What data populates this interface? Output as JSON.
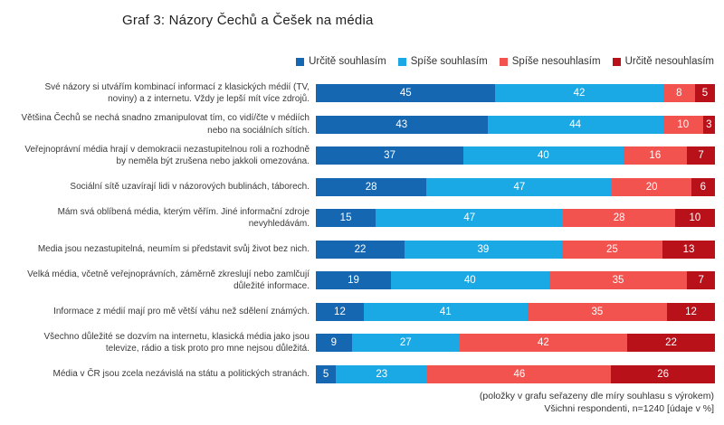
{
  "title": "Graf 3: Názory Čechů a Češek na média",
  "legend": {
    "items": [
      {
        "label": "Určitě souhlasím",
        "color": "#1567b2"
      },
      {
        "label": "Spíše souhlasím",
        "color": "#1ba9e6"
      },
      {
        "label": "Spíše nesouhlasím",
        "color": "#f3534f"
      },
      {
        "label": "Určitě nesouhlasím",
        "color": "#b9111a"
      }
    ]
  },
  "chart_data": {
    "type": "bar",
    "orientation": "horizontal",
    "stacked": true,
    "units": "%",
    "xlim": [
      0,
      100
    ],
    "grid": false,
    "legend_position": "top-right",
    "value_labels": "inside, white",
    "categories": [
      "Své názory si utvářím kombinací informací z klasických médií (TV, noviny) a z internetu. Vždy je lepší mít více zdrojů.",
      "Většina Čechů se nechá snadno zmanipulovat tím, co vidí/čte v médiích nebo na sociálních sítích.",
      "Veřejnoprávní média hrají v demokracii nezastupitelnou roli a rozhodně by neměla být zrušena nebo jakkoli omezována.",
      "Sociální sítě uzavírají lidi v názorových bublinách, táborech.",
      "Mám svá oblíbená média, kterým věřím. Jiné informační zdroje nevyhledávám.",
      "Media jsou nezastupitelná, neumím si představit svůj život bez nich.",
      "Velká média, včetně veřejnoprávních, záměrně zkreslují nebo zamlčují důležité informace.",
      "Informace z médií mají pro mě větší váhu než sdělení známých.",
      "Všechno důležité se dozvím na internetu, klasická média jako jsou televize, rádio a tisk proto pro mne nejsou důležitá.",
      "Média v ČR jsou zcela nezávislá na státu a politických stranách."
    ],
    "series": [
      {
        "name": "Určitě souhlasím",
        "color": "#1567b2",
        "values": [
          45,
          43,
          37,
          28,
          15,
          22,
          19,
          12,
          9,
          5
        ]
      },
      {
        "name": "Spíše souhlasím",
        "color": "#1ba9e6",
        "values": [
          42,
          44,
          40,
          47,
          47,
          39,
          40,
          41,
          27,
          23
        ]
      },
      {
        "name": "Spíše nesouhlasím",
        "color": "#f3534f",
        "values": [
          8,
          10,
          16,
          20,
          28,
          25,
          35,
          35,
          42,
          46
        ]
      },
      {
        "name": "Určitě nesouhlasím",
        "color": "#b9111a",
        "values": [
          5,
          3,
          7,
          6,
          10,
          13,
          7,
          12,
          22,
          26
        ]
      }
    ]
  },
  "footer": {
    "line1": "(položky v grafu seřazeny dle míry souhlasu s výrokem)",
    "line2": "Všichni respondenti, n=1240 [údaje v %]"
  }
}
